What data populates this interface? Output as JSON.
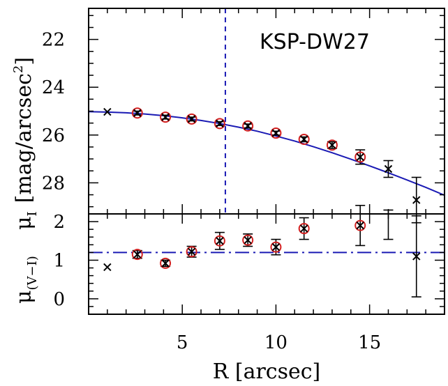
{
  "chart_data": [
    {
      "type": "scatter",
      "panel": "top",
      "annotation": "KSP-DW27",
      "ylabel": "μ_I [mag/arcsec²]",
      "ylabel_parts": {
        "symbol": "μ",
        "subscript": "I",
        "units": "[mag/arcsec",
        "sup": "2",
        "close": "]"
      },
      "xlim": [
        0,
        19
      ],
      "ylim": [
        29.3,
        20.7
      ],
      "y_inverted": true,
      "yticks": [
        22,
        24,
        26,
        28
      ],
      "ytick_labels": [
        "22",
        "24",
        "26",
        "28"
      ],
      "vline_x": 7.3,
      "fit_curve": [
        [
          0,
          25.02
        ],
        [
          1,
          25.04
        ],
        [
          2,
          25.07
        ],
        [
          3,
          25.12
        ],
        [
          4,
          25.19
        ],
        [
          5,
          25.28
        ],
        [
          6,
          25.39
        ],
        [
          7,
          25.52
        ],
        [
          8,
          25.67
        ],
        [
          9,
          25.84
        ],
        [
          10,
          26.04
        ],
        [
          11,
          26.25
        ],
        [
          12,
          26.49
        ],
        [
          13,
          26.74
        ],
        [
          14,
          27.01
        ],
        [
          15,
          27.29
        ],
        [
          16,
          27.58
        ],
        [
          17,
          27.88
        ],
        [
          18,
          28.19
        ],
        [
          19,
          28.52
        ]
      ],
      "series": [
        {
          "marker": "cross_in_circle",
          "points": [
            {
              "x": 2.6,
              "y": 25.08,
              "err": 0.08
            },
            {
              "x": 4.1,
              "y": 25.25,
              "err": 0.08
            },
            {
              "x": 5.5,
              "y": 25.33,
              "err": 0.08
            },
            {
              "x": 7.0,
              "y": 25.52,
              "err": 0.08
            },
            {
              "x": 8.5,
              "y": 25.62,
              "err": 0.08
            },
            {
              "x": 10.0,
              "y": 25.92,
              "err": 0.08
            },
            {
              "x": 11.5,
              "y": 26.18,
              "err": 0.1
            },
            {
              "x": 13.0,
              "y": 26.42,
              "err": 0.14
            },
            {
              "x": 14.5,
              "y": 26.92,
              "err": 0.3
            }
          ]
        },
        {
          "marker": "cross",
          "points": [
            {
              "x": 1.0,
              "y": 25.03,
              "err": 0
            },
            {
              "x": 16.0,
              "y": 27.42,
              "err": 0.35
            },
            {
              "x": 17.5,
              "y": 28.72,
              "err": 0.95
            }
          ]
        }
      ]
    },
    {
      "type": "scatter",
      "panel": "bottom",
      "ylabel": "μ(V−I)",
      "ylabel_parts": {
        "symbol": "μ",
        "subscript": "(V−I)"
      },
      "xlabel": "R [arcsec]",
      "xlim": [
        0,
        19
      ],
      "ylim": [
        -0.4,
        2.2
      ],
      "yticks": [
        0,
        1,
        2
      ],
      "ytick_labels": [
        "0",
        "1",
        "2"
      ],
      "xticks": [
        5,
        10,
        15
      ],
      "xtick_labels": [
        "5",
        "10",
        "15"
      ],
      "hline_y": 1.2,
      "series": [
        {
          "marker": "cross_in_circle",
          "points": [
            {
              "x": 2.6,
              "y": 1.15,
              "err": 0.1
            },
            {
              "x": 4.1,
              "y": 0.92,
              "err": 0.08
            },
            {
              "x": 5.5,
              "y": 1.22,
              "err": 0.14
            },
            {
              "x": 7.0,
              "y": 1.5,
              "err": 0.22
            },
            {
              "x": 8.5,
              "y": 1.52,
              "err": 0.16
            },
            {
              "x": 10.0,
              "y": 1.34,
              "err": 0.2
            },
            {
              "x": 11.5,
              "y": 1.82,
              "err": 0.28
            },
            {
              "x": 14.5,
              "y": 1.9,
              "err": 0.52
            }
          ]
        },
        {
          "marker": "cross",
          "points": [
            {
              "x": 1.0,
              "y": 0.82,
              "err": 0
            },
            {
              "x": 17.5,
              "y": 1.1,
              "err": 1.05
            }
          ]
        },
        {
          "marker": "errorbar_only",
          "points": [
            {
              "x": 16.0,
              "y": 1.92,
              "err": 0.38
            }
          ]
        }
      ]
    }
  ],
  "colors": {
    "axis": "#000000",
    "fit_curve": "#1a1ab4",
    "vline": "#1a1ab4",
    "hline": "#1a1ab4",
    "circle": "#d42020",
    "cross": "#000000"
  }
}
